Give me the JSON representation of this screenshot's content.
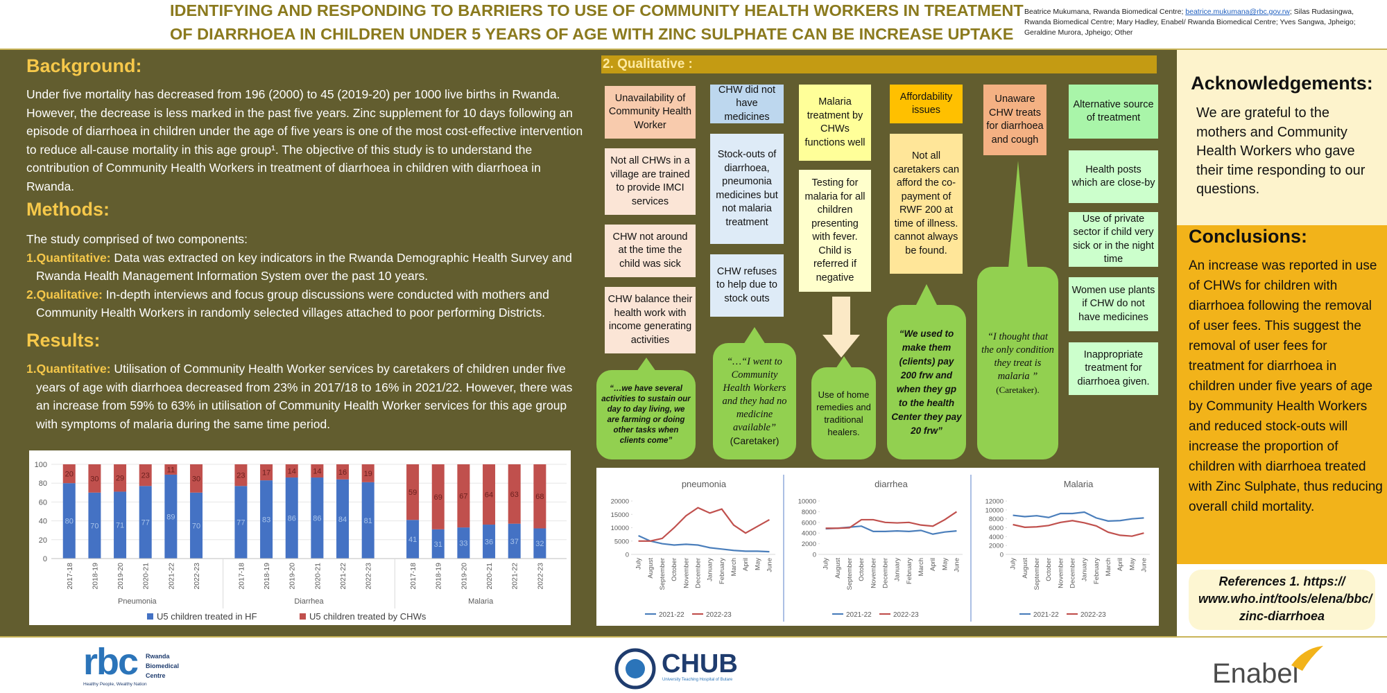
{
  "header": {
    "title_lines": [
      "IDENTIFYING AND RESPONDING TO BARRIERS TO USE OF COMMUNITY HEALTH WORKERS IN TREATMENT",
      "OF DIARRHOEA IN CHILDREN UNDER 5 YEARS OF AGE WITH ZINC SULPHATE CAN BE INCREASE UPTAKE"
    ],
    "authors_before": "Beatrice Mukumana, Rwanda Biomedical Centre; ",
    "email": "beatrice.mukumana@rbc.gov.rw",
    "authors_after": "; Silas Rudasingwa, Rwanda Biomedical Centre; Mary Hadley, Enabel/ Rwanda Biomedical Centre; Yves Sangwa, Jpheigo; Geraldine Murora, Jpheigo; Other"
  },
  "background": {
    "heading": "Background:",
    "text": "Under five mortality has decreased from 196 (2000) to 45 (2019-20) per 1000 live births in Rwanda. However, the decrease is less marked in the past five years. Zinc supplement for 10 days following an episode of diarrhoea in children under the age of five years is one of the most cost-effective intervention to reduce all-cause mortality in this age group¹. The objective of this study is to understand the contribution of Community Health Workers in treatment of diarrhoea in children with diarrhoea in Rwanda."
  },
  "methods": {
    "heading": "Methods:",
    "intro": "The study comprised of two components:",
    "items": [
      {
        "label": "1.Quantitative:",
        "text": " Data was extracted on key indicators in the Rwanda Demographic Health Survey and Rwanda Health Management Information System over the past 10 years."
      },
      {
        "label": "2.Qualitative:",
        "text": " In-depth interviews and focus group discussions  were conducted with mothers and Community Health Workers  in randomly selected villages attached to poor performing Districts."
      }
    ]
  },
  "results": {
    "heading": "Results:",
    "items": [
      {
        "label": "1.Quantitative:",
        "text": " Utilisation of Community Health Worker services by caretakers of children under five years of age with diarrhoea decreased from 23% in 2017/18 to 16% in 2021/22. However, there was an increase from 59% to 63% in utilisation of Community Health Worker services for this age group with symptoms of malaria during the same time period."
      }
    ]
  },
  "qualitative": {
    "heading": "2. Qualitative :",
    "boxes": [
      "Unavailability of Community Health Worker",
      "Not all CHWs in a village are trained to provide IMCI services",
      "CHW not around at the time the child was sick",
      "CHW balance their health work with income generating activities",
      "CHW did not have medicines",
      "Stock-outs of diarrhoea, pneumonia medicines but not malaria treatment",
      "CHW refuses to help due to stock outs",
      "Malaria treatment by CHWs functions well",
      "Testing for malaria for all children presenting with fever. Child is referred if negative",
      "Affordability issues",
      "Not all caretakers can afford the co-payment of RWF 200 at time of illness. cannot always be found.",
      "Unaware CHW treats for diarrhoea and cough",
      "Alternative source of treatment",
      "Health posts which are close-by",
      "Use of private sector if child very sick or in the night time",
      "Women use plants if CHW do not have medicines",
      "Inappropriate treatment for diarrhoea given."
    ],
    "quotes": [
      {
        "text": "“…we have several activities to sustain our day to day living, we are farming or doing other tasks when clients come”"
      },
      {
        "text": "“…“I went to Community Health Workers and they had no medicine available”",
        "source": "(Caretaker)"
      },
      {
        "text": "Use of home remedies and traditional healers."
      },
      {
        "text": "“We used to make them (clients) pay 200 frw and when they gp to the health Center they pay 20 frw”"
      },
      {
        "text": "“I thought that the only condition they treat is malaria ”",
        "source": "(Caretaker)."
      }
    ]
  },
  "acknowledgements": {
    "heading": "Acknowledgements:",
    "text": "We are grateful to the mothers and Community Health Workers who gave their time responding to our questions."
  },
  "conclusions": {
    "heading": "Conclusions:",
    "text": "An increase was reported in use of CHWs for children with diarrhoea following the removal of user fees. This suggest the removal of user fees for treatment for diarrhoea in children under five years of age by Community Health Workers and reduced stock-outs will increase the proportion of children with diarrhoea treated with Zinc Sulphate, thus reducing overall child mortality."
  },
  "references": "References 1. https:// www.who.int/tools/elena/bbc/ zinc-diarrhoea",
  "logos": {
    "rbc": "rbc",
    "rbc_name": "Rwanda Biomedical Centre",
    "rbc_tagline": "Healthy People, Wealthy Nation",
    "chub": "CHUB",
    "chub_sub": "University Teaching Hospital of Butare",
    "enabel": "Enabel"
  },
  "chart_data": [
    {
      "type": "bar",
      "stacked": true,
      "categories": [
        "2017-18",
        "2018-19",
        "2019-20",
        "2020-21",
        "2021-22",
        "2022-23",
        "2017-18",
        "2018-19",
        "2019-20",
        "2020-21",
        "2021-22",
        "2022-23",
        "2017-18",
        "2018-19",
        "2019-20",
        "2020-21",
        "2021-22",
        "2022-23"
      ],
      "group_labels": [
        "Pneumonia",
        "Diarrhea",
        "Malaria"
      ],
      "series": [
        {
          "name": "U5 children treated in HF",
          "color": "#4472c4",
          "values": [
            80,
            70,
            71,
            77,
            89,
            70,
            77,
            83,
            86,
            86,
            84,
            81,
            41,
            31,
            33,
            36,
            37,
            32
          ]
        },
        {
          "name": "U5 children treated by  CHWs",
          "color": "#c0504d",
          "values": [
            20,
            30,
            29,
            23,
            11,
            30,
            23,
            17,
            14,
            14,
            16,
            19,
            59,
            69,
            67,
            64,
            63,
            68
          ]
        }
      ],
      "ylim": [
        0,
        100
      ],
      "yticks": [
        0,
        20,
        40,
        60,
        80,
        100
      ],
      "grid": true
    },
    {
      "type": "line",
      "title": "pneumonia",
      "categories": [
        "July",
        "August",
        "September",
        "October",
        "November",
        "December",
        "January",
        "February",
        "March",
        "April",
        "May",
        "June"
      ],
      "series": [
        {
          "name": "2021-22",
          "color": "#4a7ebb",
          "values": [
            7000,
            5000,
            4000,
            3500,
            3800,
            3500,
            2500,
            2000,
            1500,
            1200,
            1200,
            1000
          ]
        },
        {
          "name": "2022-23",
          "color": "#c0504d",
          "values": [
            5000,
            5000,
            6000,
            10000,
            14500,
            17500,
            15500,
            17000,
            11000,
            8000,
            10500,
            13000
          ]
        }
      ],
      "ylim": [
        0,
        20000
      ],
      "yticks": [
        0,
        5000,
        10000,
        15000,
        20000
      ],
      "grid": false
    },
    {
      "type": "line",
      "title": "diarrhea",
      "categories": [
        "July",
        "August",
        "September",
        "October",
        "November",
        "December",
        "January",
        "February",
        "March",
        "April",
        "May",
        "June"
      ],
      "series": [
        {
          "name": "2021-22",
          "color": "#4a7ebb",
          "values": [
            4800,
            4900,
            5100,
            5300,
            4300,
            4300,
            4400,
            4300,
            4500,
            3800,
            4200,
            4400
          ]
        },
        {
          "name": "2022-23",
          "color": "#c0504d",
          "values": [
            4900,
            4900,
            5000,
            6500,
            6500,
            6000,
            5900,
            6000,
            5500,
            5300,
            6500,
            8000
          ]
        }
      ],
      "ylim": [
        0,
        10000
      ],
      "yticks": [
        0,
        2000,
        4000,
        6000,
        8000,
        10000
      ],
      "grid": false
    },
    {
      "type": "line",
      "title": "Malaria",
      "categories": [
        "July",
        "August",
        "September",
        "October",
        "November",
        "December",
        "January",
        "February",
        "March",
        "April",
        "May",
        "June"
      ],
      "series": [
        {
          "name": "2021-22",
          "color": "#4a7ebb",
          "values": [
            8800,
            8500,
            8700,
            8300,
            9200,
            9200,
            9500,
            8200,
            7500,
            7600,
            8000,
            8200
          ]
        },
        {
          "name": "2022-23",
          "color": "#c0504d",
          "values": [
            6700,
            6100,
            6200,
            6500,
            7200,
            7600,
            7100,
            6400,
            5000,
            4300,
            4100,
            4800
          ]
        }
      ],
      "ylim": [
        0,
        12000
      ],
      "yticks": [
        0,
        2000,
        4000,
        6000,
        8000,
        10000,
        12000
      ],
      "grid": false
    }
  ]
}
